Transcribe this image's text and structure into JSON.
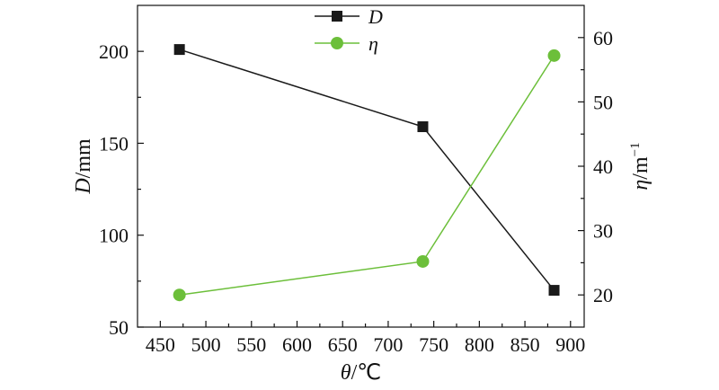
{
  "chart_data": {
    "type": "line",
    "x": [
      471,
      738,
      882
    ],
    "xlabel_var": "θ",
    "xlabel_unit": "/℃",
    "xlim": [
      425,
      915
    ],
    "xticks": [
      450,
      500,
      550,
      600,
      650,
      700,
      750,
      800,
      850,
      900
    ],
    "ylabel_left_var": "D",
    "ylabel_left_unit": "/mm",
    "ylim_left": [
      50,
      225
    ],
    "yticks_left": [
      50,
      100,
      150,
      200
    ],
    "ylabel_right_var": "η",
    "ylabel_right_unit": "/m",
    "ylabel_right_exp": "−1",
    "ylim_right": [
      15,
      65
    ],
    "yticks_right": [
      20,
      30,
      40,
      50,
      60
    ],
    "series": [
      {
        "name": "D",
        "axis": "left",
        "values": [
          201,
          159,
          70
        ],
        "color": "#1a1a1a",
        "marker": "square"
      },
      {
        "name": "η",
        "axis": "right",
        "values": [
          20,
          25.2,
          57.2
        ],
        "color": "#6cbf3a",
        "marker": "circle"
      }
    ],
    "legend_position": "top-center",
    "grid": false
  }
}
